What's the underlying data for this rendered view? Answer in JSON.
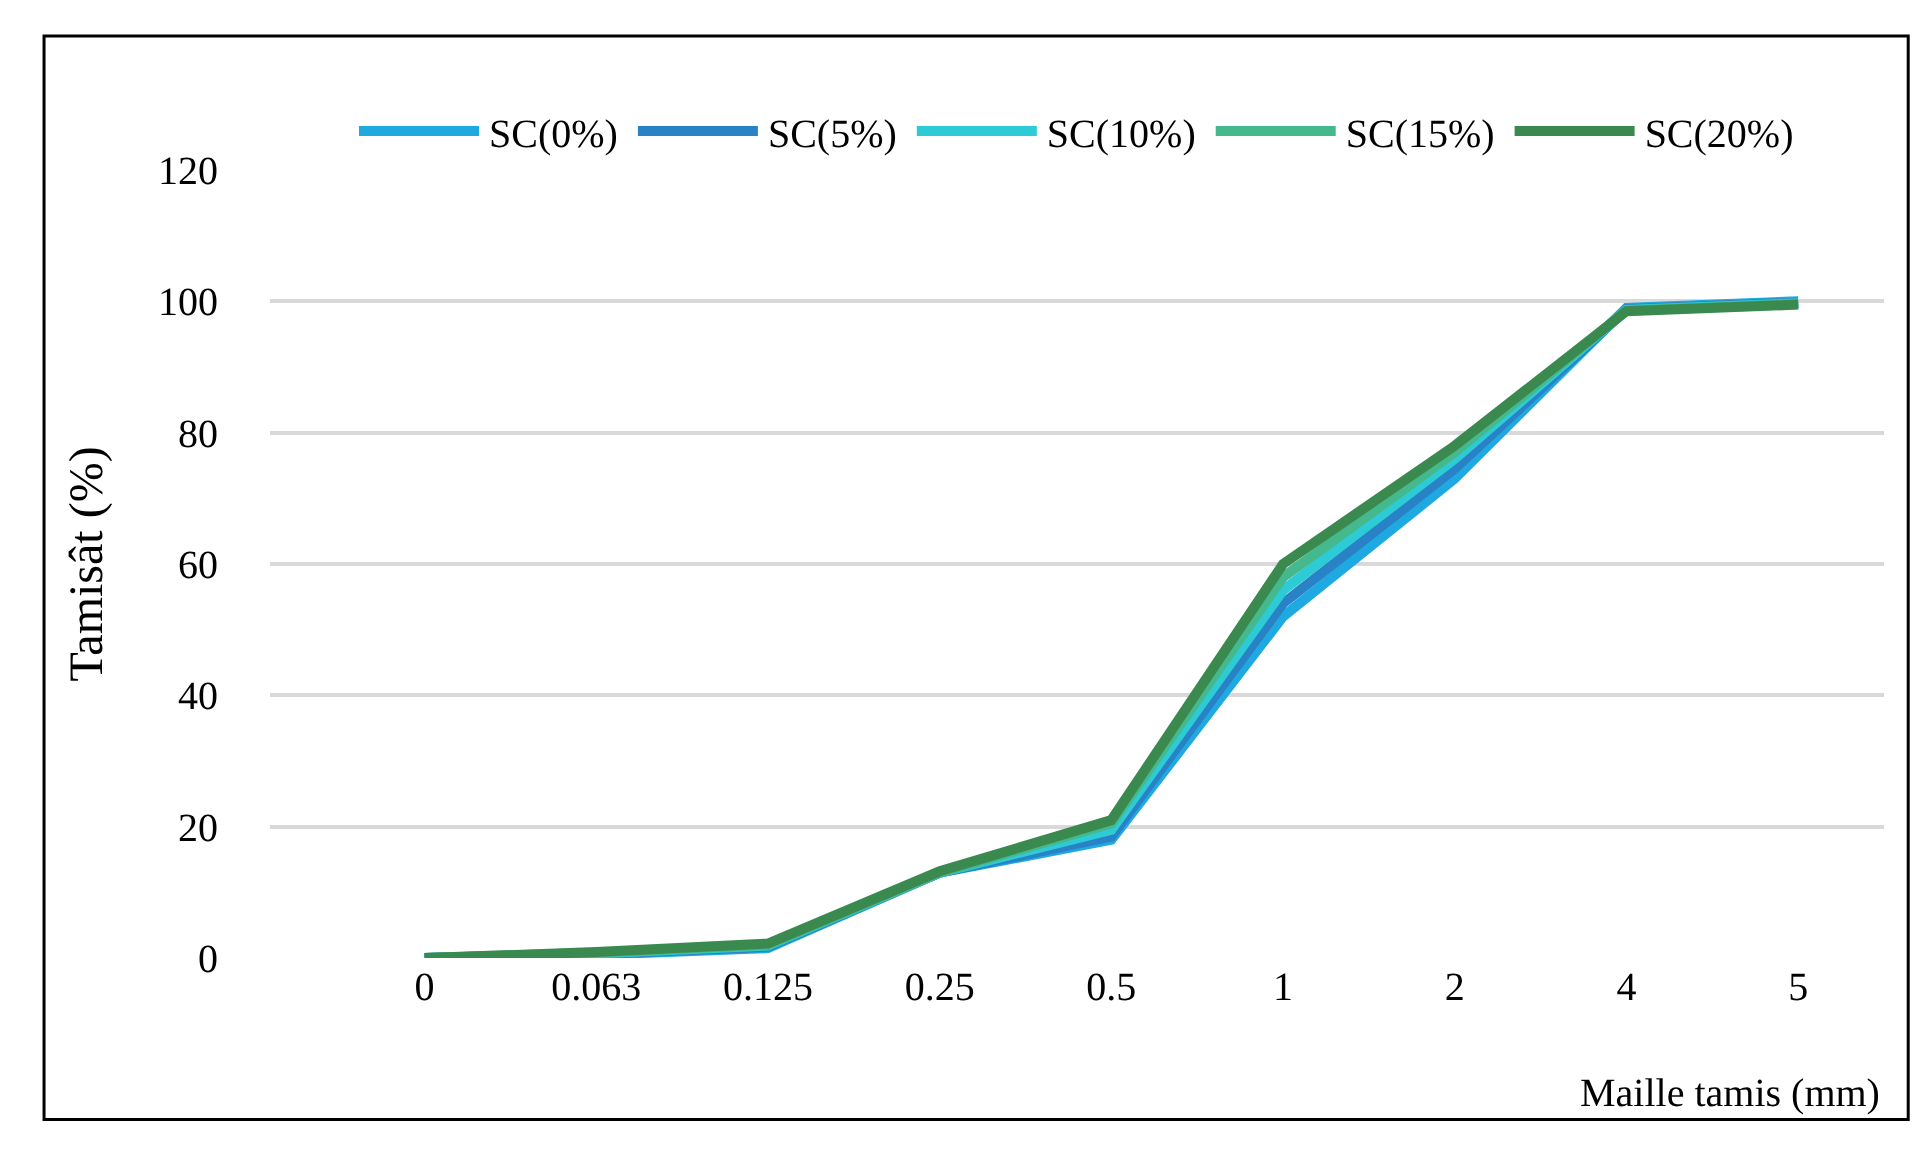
{
  "chart_data": {
    "type": "line",
    "xlabel": "Maille tamis (mm)",
    "ylabel": "Tamisât (%)",
    "categories": [
      "0",
      "0.063",
      "0.125",
      "0.25",
      "0.5",
      "1",
      "2",
      "4",
      "5"
    ],
    "series": [
      {
        "name": "SC(0%)",
        "color": "#1fa9e1",
        "values": [
          0,
          0.5,
          1.5,
          13,
          18,
          52,
          73,
          99,
          100
        ]
      },
      {
        "name": "SC(5%)",
        "color": "#2a82c6",
        "values": [
          0,
          0.6,
          1.7,
          13,
          18.5,
          54,
          74.5,
          98.8,
          99.8
        ]
      },
      {
        "name": "SC(10%)",
        "color": "#2ccbd6",
        "values": [
          0,
          0.7,
          1.9,
          13,
          19.5,
          56,
          76,
          98.7,
          99.7
        ]
      },
      {
        "name": "SC(15%)",
        "color": "#45b98e",
        "values": [
          0,
          0.8,
          2,
          13,
          20.5,
          58,
          77,
          98.6,
          99.6
        ]
      },
      {
        "name": "SC(20%)",
        "color": "#3a8a50",
        "values": [
          0,
          0.9,
          2.2,
          13.2,
          21,
          60,
          78,
          98.5,
          99.5
        ]
      }
    ],
    "ylim": [
      0,
      120
    ],
    "yticks": [
      0,
      20,
      40,
      60,
      80,
      100,
      120
    ],
    "grid": "y",
    "legend": "top",
    "marker": "none",
    "line_style": "solid"
  }
}
